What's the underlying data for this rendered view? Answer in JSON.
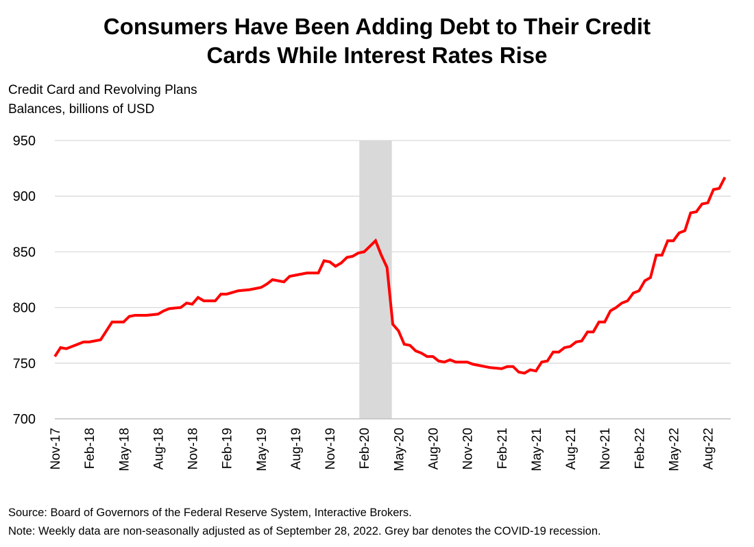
{
  "chart_data": {
    "type": "line",
    "title_lines": [
      "Consumers Have Been Adding Debt to Their Credit",
      "Cards While Interest Rates Rise"
    ],
    "ylabel_lines": [
      "Credit Card and Revolving Plans",
      "Balances, billions of USD"
    ],
    "xlabel": "",
    "ylim": [
      700,
      950
    ],
    "yticks": [
      700,
      750,
      800,
      850,
      900,
      950
    ],
    "xticks": [
      "Nov-17",
      "Feb-18",
      "May-18",
      "Aug-18",
      "Nov-18",
      "Feb-19",
      "May-19",
      "Aug-19",
      "Nov-19",
      "Feb-20",
      "May-20",
      "Aug-20",
      "Nov-20",
      "Feb-21",
      "May-21",
      "Aug-21",
      "Nov-21",
      "Feb-22",
      "May-22",
      "Aug-22"
    ],
    "xlim": [
      "2017-11",
      "2022-10"
    ],
    "grid": "horizontal",
    "legend": "none",
    "shaded_period": {
      "start": "2020-02",
      "end": "2020-04",
      "color": "#d9d9d9"
    },
    "series": [
      {
        "color": "#ff0000",
        "points": [
          [
            "2017-11",
            756
          ],
          [
            "2017-11",
            764
          ],
          [
            "2017-12",
            763
          ],
          [
            "2018-01",
            767
          ],
          [
            "2018-01",
            769
          ],
          [
            "2018-02",
            769
          ],
          [
            "2018-03",
            771
          ],
          [
            "2018-04",
            787
          ],
          [
            "2018-05",
            787
          ],
          [
            "2018-05",
            792
          ],
          [
            "2018-06",
            793
          ],
          [
            "2018-07",
            793
          ],
          [
            "2018-08",
            794
          ],
          [
            "2018-08",
            797
          ],
          [
            "2018-09",
            799
          ],
          [
            "2018-10",
            800
          ],
          [
            "2018-10",
            804
          ],
          [
            "2018-11",
            803
          ],
          [
            "2018-11",
            809
          ],
          [
            "2018-12",
            806
          ],
          [
            "2019-01",
            806
          ],
          [
            "2019-01",
            812
          ],
          [
            "2019-02",
            812
          ],
          [
            "2019-03",
            815
          ],
          [
            "2019-04",
            816
          ],
          [
            "2019-05",
            818
          ],
          [
            "2019-05",
            821
          ],
          [
            "2019-06",
            825
          ],
          [
            "2019-07",
            823
          ],
          [
            "2019-07",
            828
          ],
          [
            "2019-08",
            829
          ],
          [
            "2019-09",
            831
          ],
          [
            "2019-10",
            831
          ],
          [
            "2019-10",
            842
          ],
          [
            "2019-11",
            841
          ],
          [
            "2019-11",
            837
          ],
          [
            "2019-12",
            840
          ],
          [
            "2019-12",
            845
          ],
          [
            "2020-01",
            846
          ],
          [
            "2020-01",
            849
          ],
          [
            "2020-02",
            850
          ],
          [
            "2020-02",
            855
          ],
          [
            "2020-03",
            860
          ],
          [
            "2020-03",
            847
          ],
          [
            "2020-04",
            836
          ],
          [
            "2020-04",
            785
          ],
          [
            "2020-05",
            779
          ],
          [
            "2020-05",
            767
          ],
          [
            "2020-06",
            766
          ],
          [
            "2020-06",
            761
          ],
          [
            "2020-07",
            759
          ],
          [
            "2020-07",
            756
          ],
          [
            "2020-08",
            756
          ],
          [
            "2020-08",
            752
          ],
          [
            "2020-09",
            751
          ],
          [
            "2020-09",
            753
          ],
          [
            "2020-10",
            751
          ],
          [
            "2020-11",
            751
          ],
          [
            "2020-11",
            749
          ],
          [
            "2020-12",
            748
          ],
          [
            "2021-01",
            746
          ],
          [
            "2021-02",
            745
          ],
          [
            "2021-02",
            747
          ],
          [
            "2021-03",
            747
          ],
          [
            "2021-03",
            742
          ],
          [
            "2021-04",
            741
          ],
          [
            "2021-04",
            744
          ],
          [
            "2021-05",
            743
          ],
          [
            "2021-05",
            751
          ],
          [
            "2021-06",
            752
          ],
          [
            "2021-06",
            760
          ],
          [
            "2021-07",
            760
          ],
          [
            "2021-07",
            764
          ],
          [
            "2021-08",
            765
          ],
          [
            "2021-08",
            769
          ],
          [
            "2021-09",
            770
          ],
          [
            "2021-09",
            778
          ],
          [
            "2021-10",
            778
          ],
          [
            "2021-10",
            787
          ],
          [
            "2021-11",
            787
          ],
          [
            "2021-11",
            797
          ],
          [
            "2021-12",
            800
          ],
          [
            "2021-12",
            804
          ],
          [
            "2022-01",
            806
          ],
          [
            "2022-01",
            813
          ],
          [
            "2022-02",
            815
          ],
          [
            "2022-02",
            824
          ],
          [
            "2022-03",
            827
          ],
          [
            "2022-03",
            847
          ],
          [
            "2022-04",
            847
          ],
          [
            "2022-04",
            860
          ],
          [
            "2022-05",
            860
          ],
          [
            "2022-05",
            867
          ],
          [
            "2022-06",
            869
          ],
          [
            "2022-06",
            885
          ],
          [
            "2022-07",
            886
          ],
          [
            "2022-07",
            893
          ],
          [
            "2022-08",
            894
          ],
          [
            "2022-08",
            906
          ],
          [
            "2022-09",
            907
          ],
          [
            "2022-09",
            917
          ]
        ]
      }
    ]
  },
  "notes": {
    "source": "Source: Board of Governors of the Federal Reserve System, Interactive Brokers.",
    "note": "Note: Weekly data are non-seasonally adjusted as of September 28, 2022. Grey bar denotes the COVID-19 recession."
  }
}
